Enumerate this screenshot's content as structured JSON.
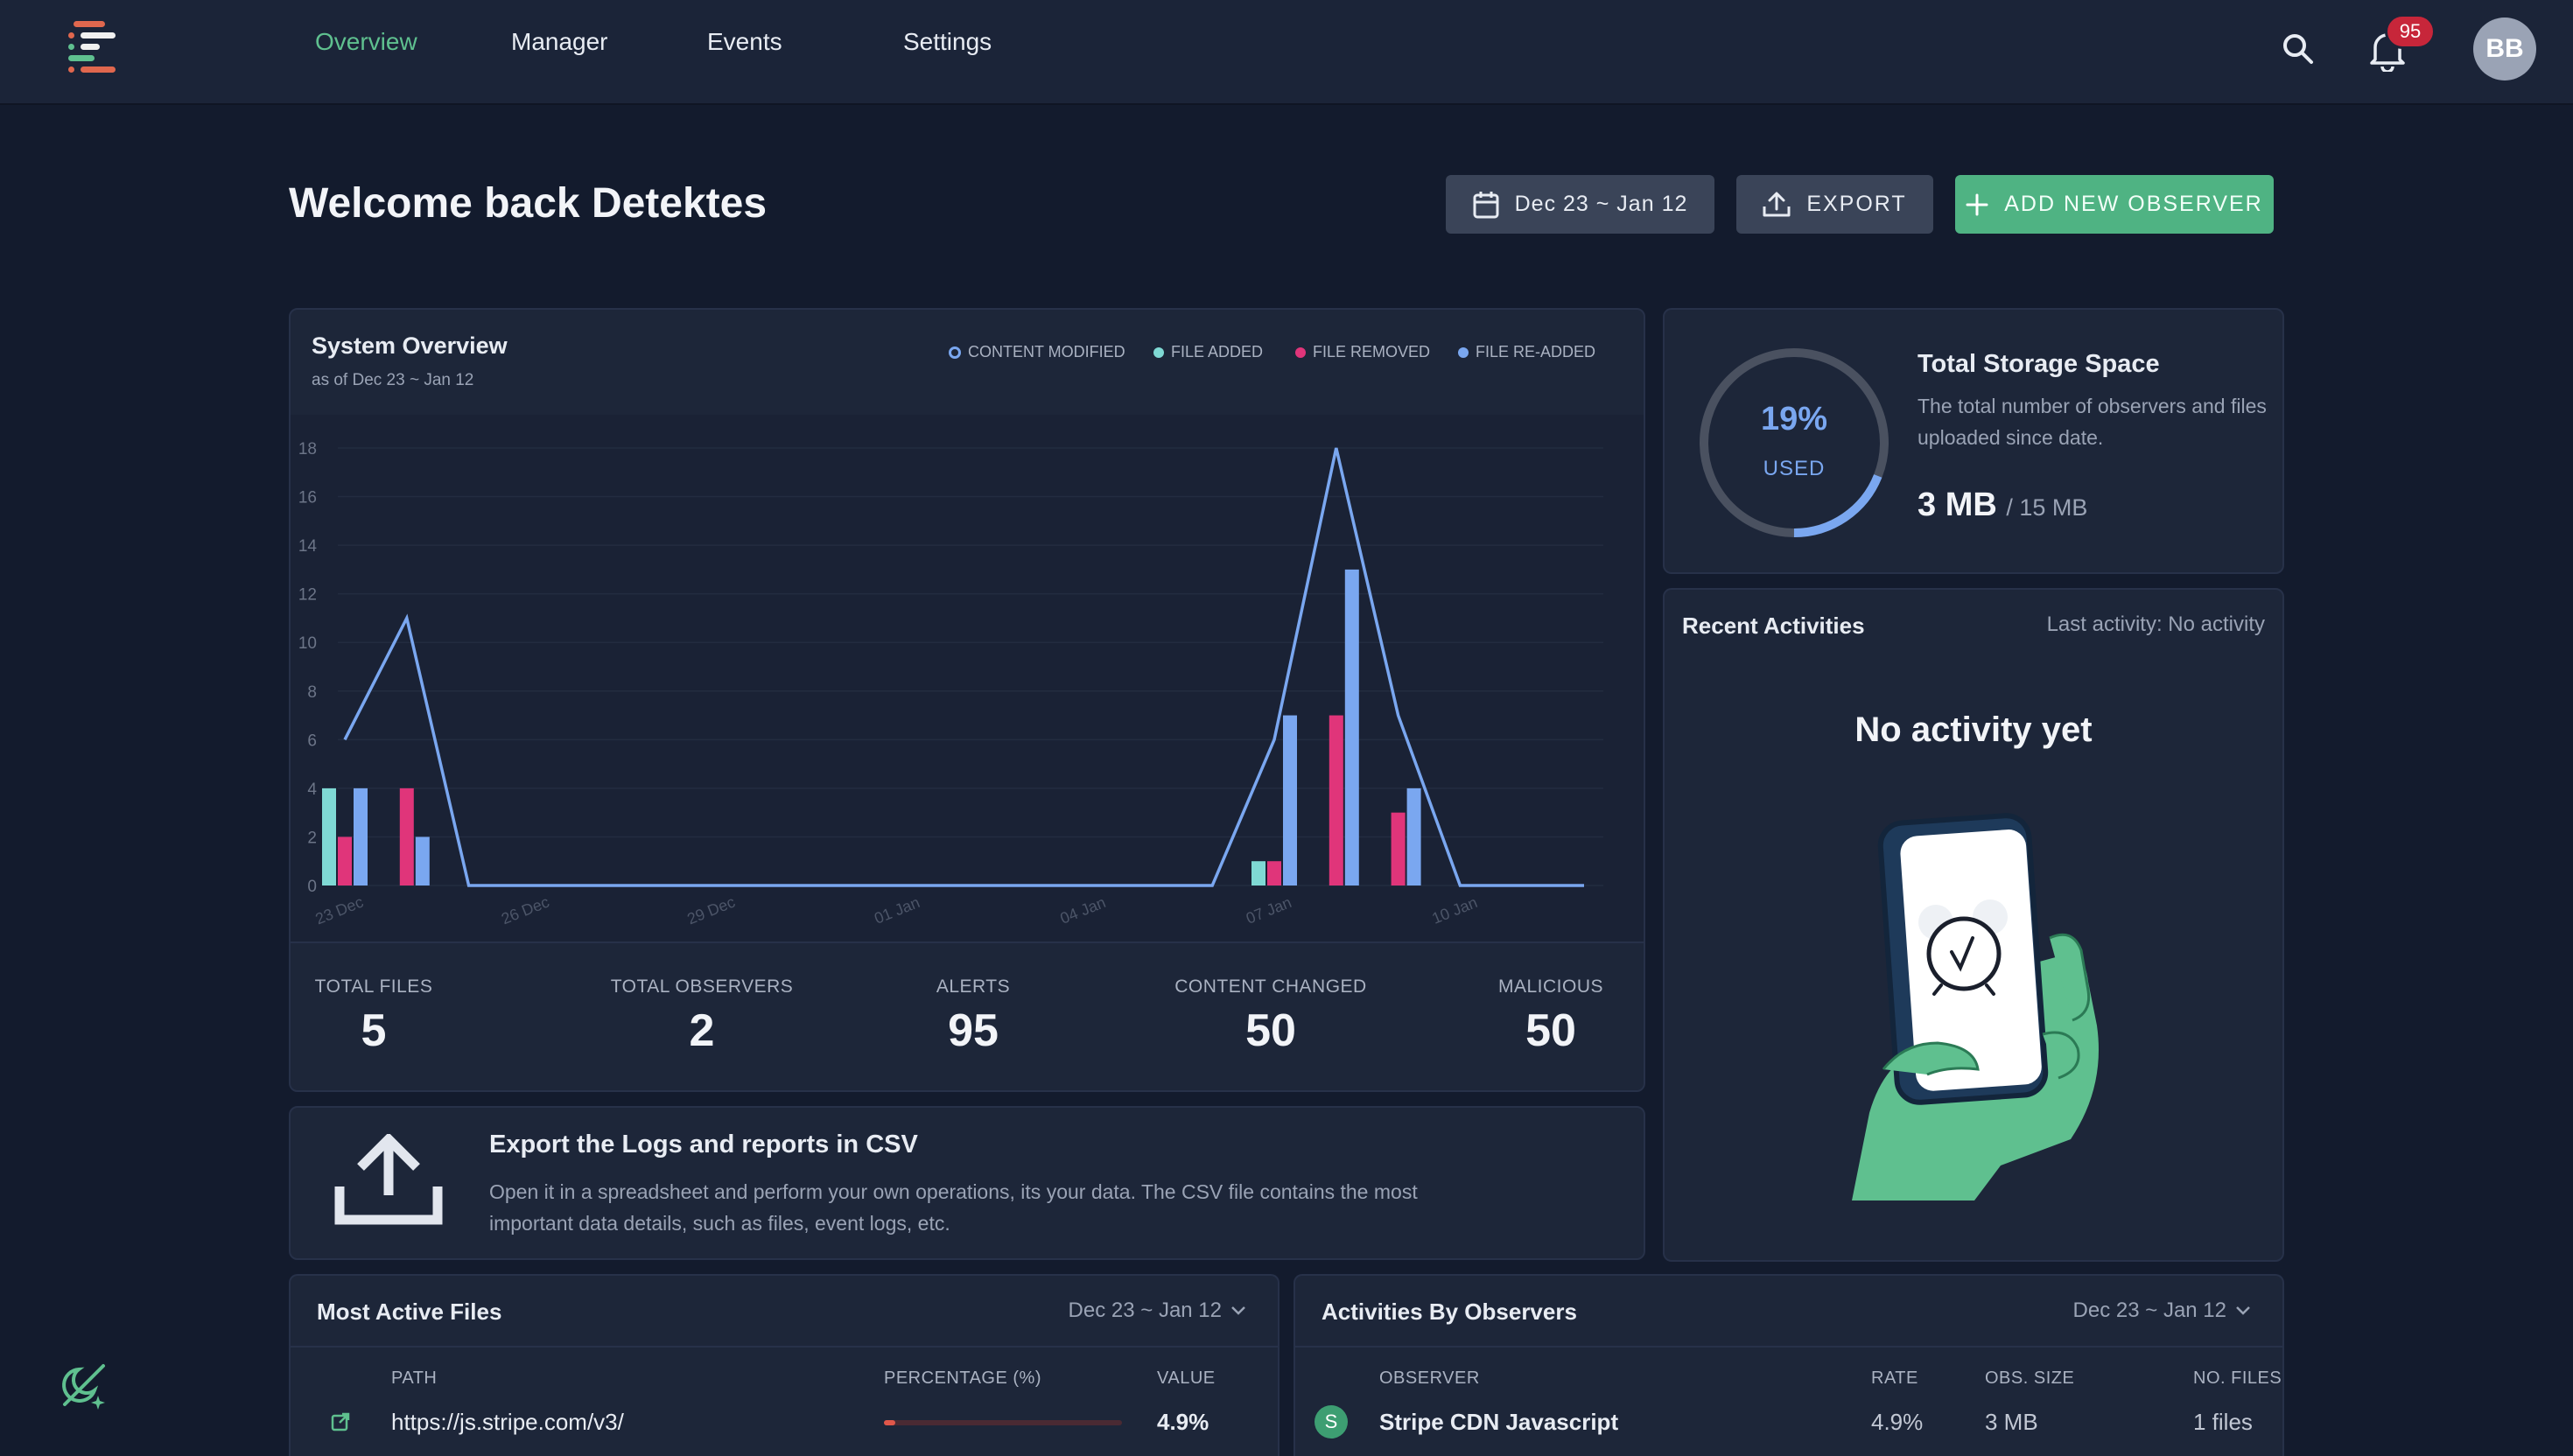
{
  "nav": {
    "items": [
      "Overview",
      "Manager",
      "Events",
      "Settings"
    ],
    "notifications_count": "95",
    "avatar_initials": "BB"
  },
  "header": {
    "welcome": "Welcome back Detektes",
    "date_range": "Dec 23 ~ Jan 12",
    "export_label": "EXPORT",
    "add_label": "ADD NEW OBSERVER"
  },
  "system_overview": {
    "title": "System Overview",
    "subtitle": "as of Dec 23 ~ Jan 12",
    "legend": [
      "CONTENT MODIFIED",
      "FILE ADDED",
      "FILE REMOVED",
      "FILE RE-ADDED"
    ],
    "stats": [
      {
        "label": "TOTAL FILES",
        "value": "5"
      },
      {
        "label": "TOTAL OBSERVERS",
        "value": "2"
      },
      {
        "label": "ALERTS",
        "value": "95"
      },
      {
        "label": "CONTENT CHANGED",
        "value": "50"
      },
      {
        "label": "MALICIOUS",
        "value": "50"
      }
    ]
  },
  "chart_data": {
    "type": "bar",
    "title": "System Overview",
    "ylim": [
      0,
      18
    ],
    "y_ticks": [
      "0",
      "2",
      "4",
      "6",
      "8",
      "10",
      "12",
      "14",
      "16",
      "18"
    ],
    "x_tick_labels": [
      "23 Dec",
      "26 Dec",
      "29 Dec",
      "01 Jan",
      "04 Jan",
      "07 Jan",
      "10 Jan"
    ],
    "days": [
      "23 Dec",
      "24 Dec",
      "25 Dec",
      "26 Dec",
      "27 Dec",
      "28 Dec",
      "29 Dec",
      "30 Dec",
      "31 Dec",
      "01 Jan",
      "02 Jan",
      "03 Jan",
      "04 Jan",
      "05 Jan",
      "06 Jan",
      "07 Jan",
      "08 Jan",
      "09 Jan",
      "10 Jan",
      "11 Jan",
      "12 Jan"
    ],
    "series": [
      {
        "name": "CONTENT MODIFIED",
        "kind": "line",
        "color": "#7aa7f0",
        "values": [
          6,
          11,
          0,
          0,
          0,
          0,
          0,
          0,
          0,
          0,
          0,
          0,
          0,
          0,
          0,
          6,
          18,
          7,
          0,
          0,
          0
        ]
      },
      {
        "name": "FILE ADDED",
        "kind": "bar",
        "color": "#7fd9d4",
        "values": [
          4,
          0,
          0,
          0,
          0,
          0,
          0,
          0,
          0,
          0,
          0,
          0,
          0,
          0,
          0,
          1,
          0,
          0,
          0,
          0,
          0
        ]
      },
      {
        "name": "FILE REMOVED",
        "kind": "bar",
        "color": "#e0357a",
        "values": [
          2,
          4,
          0,
          0,
          0,
          0,
          0,
          0,
          0,
          0,
          0,
          0,
          0,
          0,
          0,
          1,
          7,
          3,
          0,
          0,
          0
        ]
      },
      {
        "name": "FILE RE-ADDED",
        "kind": "bar",
        "color": "#7aa7f0",
        "values": [
          4,
          2,
          0,
          0,
          0,
          0,
          0,
          0,
          0,
          0,
          0,
          0,
          0,
          0,
          0,
          7,
          13,
          4,
          0,
          0,
          0
        ]
      }
    ]
  },
  "storage": {
    "percent_value": 19,
    "percent_label": "19%",
    "used_caption": "USED",
    "title": "Total Storage Space",
    "description": "The total number of observers and files uploaded since date.",
    "used": "3 MB",
    "total": "/ 15 MB"
  },
  "recent": {
    "title": "Recent Activities",
    "last_activity": "Last activity: No activity",
    "empty_text": "No activity yet"
  },
  "csv": {
    "title": "Export the Logs and reports in CSV",
    "description": "Open it in a spreadsheet and perform your own operations, its your data. The CSV file contains the most important data details, such as files, event logs, etc."
  },
  "most_active": {
    "title": "Most Active Files",
    "range": "Dec 23 ~ Jan 12",
    "columns": [
      "PATH",
      "PERCENTAGE (%)",
      "VALUE"
    ],
    "rows": [
      {
        "path": "https://js.stripe.com/v3/",
        "percent": 4.9,
        "value": "4.9%"
      }
    ]
  },
  "observers": {
    "title": "Activities By Observers",
    "range": "Dec 23 ~ Jan 12",
    "columns": [
      "OBSERVER",
      "RATE",
      "OBS. SIZE",
      "NO. FILES"
    ],
    "rows": [
      {
        "initial": "S",
        "name": "Stripe CDN Javascript",
        "rate": "4.9%",
        "size": "3 MB",
        "files": "1 files"
      }
    ]
  },
  "colors": {
    "accent": "#5fc08f",
    "alert": "#c7263a",
    "blue": "#7aa7f0",
    "pink": "#e0357a",
    "teal": "#7fd9d4"
  }
}
